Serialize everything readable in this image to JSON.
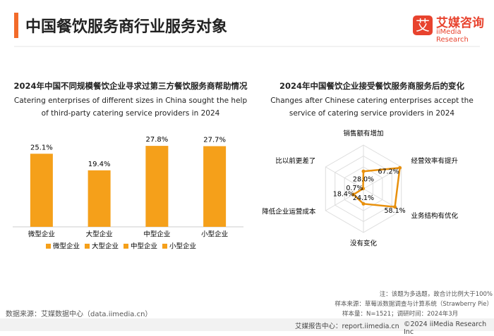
{
  "header": {
    "title": "中国餐饮服务商行业服务对象",
    "logo": "艾媒咨询",
    "logo_en": "iiMedia Research"
  },
  "chart_data": [
    {
      "type": "bar",
      "title": "2024年中国不同规模餐饮企业寻求过第三方餐饮服务商帮助情况",
      "subtitle": "Catering enterprises of different sizes in China sought the help of third-party catering service providers in 2024",
      "categories": [
        "微型企业",
        "大型企业",
        "中型企业",
        "小型企业"
      ],
      "values": [
        25.1,
        19.4,
        27.8,
        27.7
      ],
      "value_labels": [
        "25.1%",
        "19.4%",
        "27.8%",
        "27.7%"
      ],
      "color": "#F5A01A",
      "ylim": [
        0,
        30
      ]
    },
    {
      "type": "radar",
      "title": "2024年中国餐饮企业接受餐饮服务商服务后的变化",
      "subtitle": "Changes after Chinese catering enterprises accept the service of catering service providers in 2024",
      "categories": [
        "销售额有增加",
        "经营效率有提升",
        "业务结构有优化",
        "没有变化",
        "降低企业运营成本",
        "比以前更差了"
      ],
      "values": [
        28.0,
        67.2,
        58.1,
        24.1,
        18.4,
        0.7
      ],
      "value_labels": [
        "28.0%",
        "67.2%",
        "58.1%",
        "24.1%",
        "18.4%",
        "0.7%"
      ],
      "color": "#E8900C",
      "rlim": [
        0,
        70
      ]
    }
  ],
  "footer": {
    "source": "数据来源：艾媒数据中心（data.iimedia.cn）",
    "note": "注：该题为多选题，故合计比例大于100%",
    "sample_source": "样本来源：草莓派数据调查与计算系统（Strawberry Pie）",
    "sample_size": "样本量：N=1521；调研时间：2024年3月",
    "report_center": "艾媒报告中心：report.iimedia.cn",
    "copyright": "©2024  iiMedia Research Inc"
  }
}
